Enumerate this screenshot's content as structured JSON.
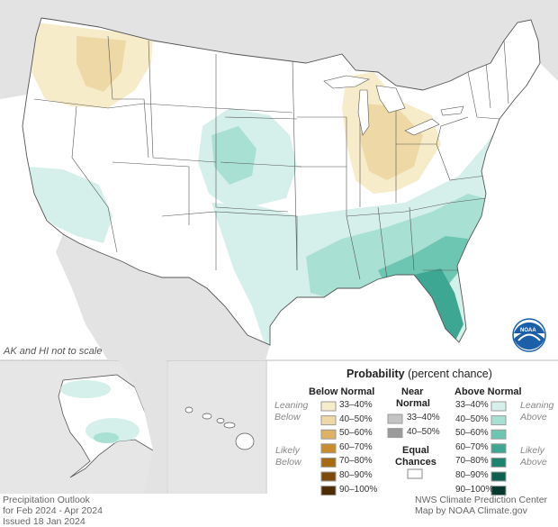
{
  "colors": {
    "background_land_outside": "#e3e3e3",
    "water": "#ffffff",
    "state_border": "#555555",
    "below": [
      "#f7ecc9",
      "#eed9a6",
      "#ddb265",
      "#c98d2e",
      "#a76a12",
      "#7d4a09",
      "#4e2d04"
    ],
    "near": [
      "#c4c4c4",
      "#9a9a9a"
    ],
    "above": [
      "#d5f0ea",
      "#a9e0d4",
      "#6dc6b2",
      "#3ea793",
      "#1e8471",
      "#0f5f50",
      "#06392f"
    ],
    "equal_chances": "#ffffff",
    "noaa_blue": "#1b5fa8"
  },
  "map": {
    "note": "AK and HI not to scale",
    "logo_text": "NOAA"
  },
  "legend": {
    "title": "Probability",
    "title_sub": "(percent chance)",
    "below_header": "Below Normal",
    "near_header_1": "Near",
    "near_header_2": "Normal",
    "above_header": "Above Normal",
    "leaning_1": "Leaning",
    "leaning_below": "Below",
    "leaning_above": "Above",
    "likely_1": "Likely",
    "likely_below": "Below",
    "likely_above": "Above",
    "below_labels": [
      "33–40%",
      "40–50%",
      "50–60%",
      "60–70%",
      "70–80%",
      "80–90%",
      "90–100%"
    ],
    "near_labels": [
      "33–40%",
      "40–50%"
    ],
    "above_labels": [
      "33–40%",
      "40–50%",
      "50–60%",
      "60–70%",
      "70–80%",
      "80–90%",
      "90–100%"
    ],
    "equal_1": "Equal",
    "equal_2": "Chances"
  },
  "footer": {
    "left_1": "Precipitation Outlook",
    "left_2": "for Feb 2024 - Apr 2024",
    "left_3": "Issued 18 Jan 2024",
    "right_1": "NWS Climate Prediction Center",
    "right_2": "Map by NOAA Climate.gov"
  }
}
